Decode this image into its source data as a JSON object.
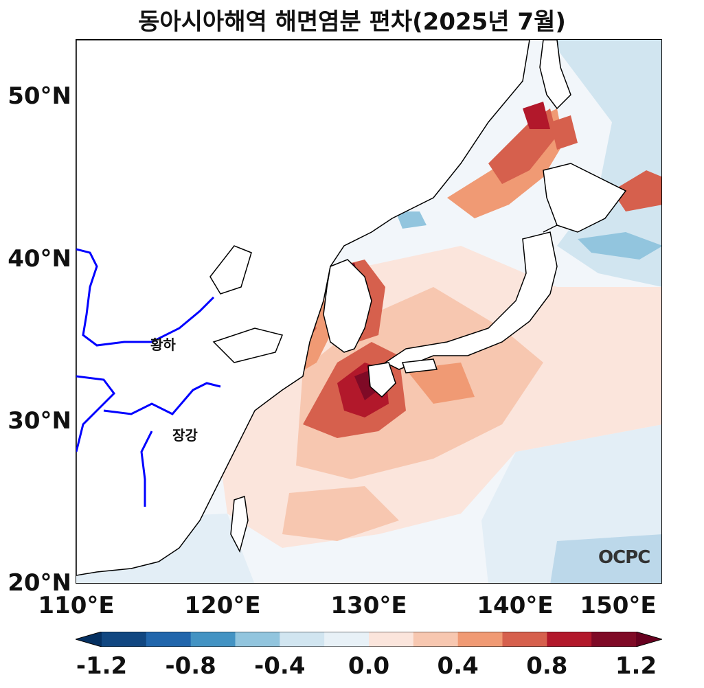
{
  "title": "동아시아해역 해면염분 편차(2025년 7월)",
  "map": {
    "lon_range": [
      110,
      150
    ],
    "lat_range": [
      20,
      53.5
    ],
    "x_ticks": [
      "110°E",
      "120°E",
      "130°E",
      "140°E",
      "150°E"
    ],
    "y_ticks": [
      "20°N",
      "30°N",
      "40°N",
      "50°N"
    ],
    "rivers": [
      {
        "label": "황하",
        "color": "#0000ff"
      },
      {
        "label": "장강",
        "color": "#0000ff"
      }
    ],
    "logo": "OCPC"
  },
  "colorbar": {
    "ticks": [
      "-1.2",
      "-0.8",
      "-0.4",
      "0.0",
      "0.4",
      "0.8",
      "1.2"
    ],
    "levels": [
      -1.2,
      -1.0,
      -0.8,
      -0.6,
      -0.4,
      -0.2,
      0.0,
      0.2,
      0.4,
      0.6,
      0.8,
      1.0,
      1.2
    ],
    "colors": [
      "#053061",
      "#114781",
      "#2166ac",
      "#4393c3",
      "#92c5de",
      "#d1e5f0",
      "#e8f1f7",
      "#fbe5dc",
      "#f7c7b0",
      "#f09a74",
      "#d6604d",
      "#b2182b",
      "#7f0a26",
      "#67001f"
    ]
  }
}
